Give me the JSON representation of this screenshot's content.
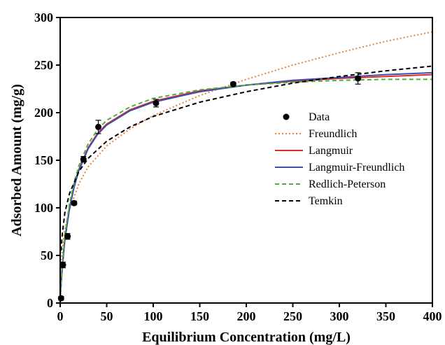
{
  "chart_data": {
    "type": "scatter",
    "xlabel": "Equilibrium Concentration (mg/L)",
    "ylabel": "Adsorbed Amount (mg/g)",
    "xlim": [
      0,
      400
    ],
    "ylim": [
      0,
      300
    ],
    "x_ticks": [
      0,
      50,
      100,
      150,
      200,
      250,
      300,
      350,
      400
    ],
    "y_ticks": [
      0,
      50,
      100,
      150,
      200,
      250,
      300
    ],
    "x_tick_labels": [
      "0",
      "50",
      "100",
      "150",
      "200",
      "250",
      "300",
      "350",
      "400"
    ],
    "y_tick_labels": [
      "0",
      "50",
      "100",
      "150",
      "200",
      "250",
      "300"
    ],
    "grid": false,
    "legend_position": "right",
    "series": [
      {
        "name": "Data",
        "kind": "scatter",
        "color": "#000000",
        "points": [
          {
            "x": 1,
            "y": 5,
            "err": 2
          },
          {
            "x": 3,
            "y": 40,
            "err": 3
          },
          {
            "x": 8,
            "y": 70,
            "err": 3
          },
          {
            "x": 15,
            "y": 105,
            "err": 2
          },
          {
            "x": 25,
            "y": 151,
            "err": 3
          },
          {
            "x": 41,
            "y": 185,
            "err": 7
          },
          {
            "x": 103,
            "y": 210,
            "err": 4
          },
          {
            "x": 186,
            "y": 230,
            "err": 2
          },
          {
            "x": 320,
            "y": 236,
            "err": 6
          }
        ]
      },
      {
        "name": "Freundlich",
        "kind": "line",
        "color": "#e8823a",
        "dash": "dotted",
        "points": [
          {
            "x": 1,
            "y": 45
          },
          {
            "x": 5,
            "y": 77
          },
          {
            "x": 10,
            "y": 98
          },
          {
            "x": 20,
            "y": 125
          },
          {
            "x": 30,
            "y": 143
          },
          {
            "x": 50,
            "y": 165
          },
          {
            "x": 75,
            "y": 183
          },
          {
            "x": 100,
            "y": 197
          },
          {
            "x": 150,
            "y": 218
          },
          {
            "x": 200,
            "y": 235
          },
          {
            "x": 250,
            "y": 250
          },
          {
            "x": 300,
            "y": 263
          },
          {
            "x": 350,
            "y": 275
          },
          {
            "x": 400,
            "y": 285
          }
        ]
      },
      {
        "name": "Langmuir",
        "kind": "line",
        "color": "#e02a2a",
        "dash": "solid",
        "points": [
          {
            "x": 0,
            "y": 5
          },
          {
            "x": 2,
            "y": 35
          },
          {
            "x": 5,
            "y": 68
          },
          {
            "x": 10,
            "y": 100
          },
          {
            "x": 15,
            "y": 123
          },
          {
            "x": 20,
            "y": 140
          },
          {
            "x": 30,
            "y": 163
          },
          {
            "x": 40,
            "y": 178
          },
          {
            "x": 50,
            "y": 188
          },
          {
            "x": 75,
            "y": 203
          },
          {
            "x": 100,
            "y": 212
          },
          {
            "x": 150,
            "y": 223
          },
          {
            "x": 200,
            "y": 229
          },
          {
            "x": 250,
            "y": 233
          },
          {
            "x": 300,
            "y": 236
          },
          {
            "x": 350,
            "y": 238
          },
          {
            "x": 400,
            "y": 240
          }
        ]
      },
      {
        "name": "Langmuir-Freundlich",
        "kind": "line",
        "color": "#3a50b0",
        "dash": "solid",
        "points": [
          {
            "x": 0,
            "y": 5
          },
          {
            "x": 2,
            "y": 34
          },
          {
            "x": 5,
            "y": 66
          },
          {
            "x": 10,
            "y": 99
          },
          {
            "x": 15,
            "y": 122
          },
          {
            "x": 20,
            "y": 139
          },
          {
            "x": 30,
            "y": 162
          },
          {
            "x": 40,
            "y": 177
          },
          {
            "x": 50,
            "y": 187
          },
          {
            "x": 75,
            "y": 202
          },
          {
            "x": 100,
            "y": 211
          },
          {
            "x": 150,
            "y": 222
          },
          {
            "x": 200,
            "y": 229
          },
          {
            "x": 250,
            "y": 234
          },
          {
            "x": 300,
            "y": 237
          },
          {
            "x": 350,
            "y": 240
          },
          {
            "x": 400,
            "y": 242
          }
        ]
      },
      {
        "name": "Redlich-Peterson",
        "kind": "line",
        "color": "#4caf3a",
        "dash": "dashed",
        "points": [
          {
            "x": 0,
            "y": 5
          },
          {
            "x": 2,
            "y": 37
          },
          {
            "x": 5,
            "y": 71
          },
          {
            "x": 10,
            "y": 104
          },
          {
            "x": 15,
            "y": 127
          },
          {
            "x": 20,
            "y": 144
          },
          {
            "x": 30,
            "y": 167
          },
          {
            "x": 40,
            "y": 182
          },
          {
            "x": 50,
            "y": 192
          },
          {
            "x": 75,
            "y": 206
          },
          {
            "x": 100,
            "y": 215
          },
          {
            "x": 150,
            "y": 224
          },
          {
            "x": 200,
            "y": 229
          },
          {
            "x": 250,
            "y": 232
          },
          {
            "x": 300,
            "y": 234
          },
          {
            "x": 350,
            "y": 235
          },
          {
            "x": 400,
            "y": 235
          }
        ]
      },
      {
        "name": "Temkin",
        "kind": "line",
        "color": "#000000",
        "dash": "dashed",
        "points": [
          {
            "x": 1,
            "y": 55
          },
          {
            "x": 2,
            "y": 70
          },
          {
            "x": 5,
            "y": 95
          },
          {
            "x": 10,
            "y": 115
          },
          {
            "x": 20,
            "y": 138
          },
          {
            "x": 30,
            "y": 152
          },
          {
            "x": 50,
            "y": 170
          },
          {
            "x": 75,
            "y": 185
          },
          {
            "x": 100,
            "y": 196
          },
          {
            "x": 150,
            "y": 211
          },
          {
            "x": 200,
            "y": 222
          },
          {
            "x": 250,
            "y": 231
          },
          {
            "x": 300,
            "y": 238
          },
          {
            "x": 350,
            "y": 244
          },
          {
            "x": 400,
            "y": 249
          }
        ]
      }
    ]
  }
}
